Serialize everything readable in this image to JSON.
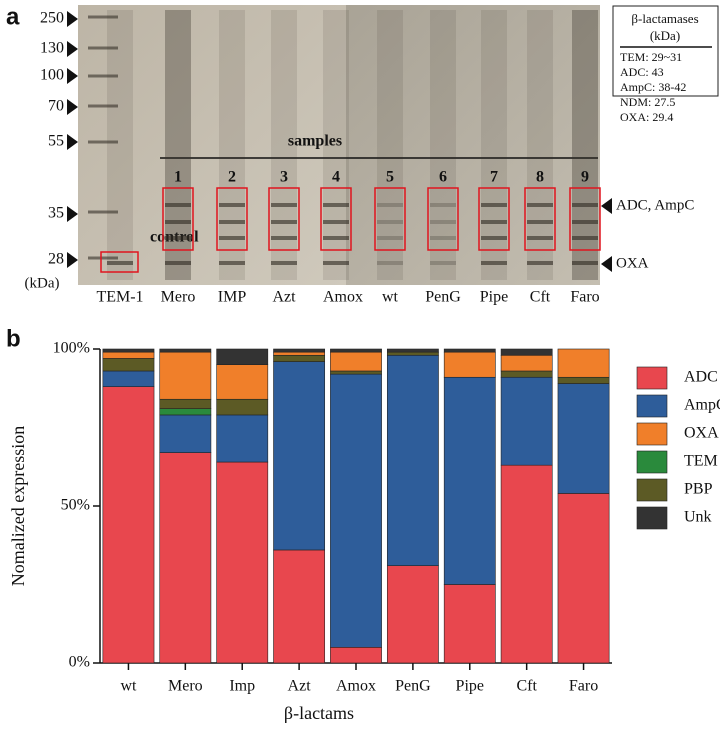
{
  "panel_labels": [
    "a",
    "b"
  ],
  "gel": {
    "markers": [
      "250",
      "130",
      "100",
      "70",
      "55",
      "35",
      "28"
    ],
    "marker_unit": "(kDa)",
    "lanes": [
      "TEM-1",
      "Mero",
      "IMP",
      "Azt",
      "Amox",
      "wt",
      "PenG",
      "Pipe",
      "Cft",
      "Faro"
    ],
    "samples_label": "samples",
    "sample_numbers": [
      "1",
      "2",
      "3",
      "4",
      "5",
      "6",
      "7",
      "8",
      "9"
    ],
    "control_label": "control",
    "band_labels": [
      "ADC, AmpC",
      "OXA"
    ],
    "legend_title": [
      "β-lactamases",
      "(kDa)"
    ],
    "legend_entries": [
      "TEM: 29~31",
      "ADC: 43",
      "AmpC: 38-42",
      "NDM: 27.5",
      "OXA: 29.4"
    ]
  },
  "chart_data": {
    "type": "stacked-bar",
    "y_label": "Nomalized expression",
    "x_label": "β-lactams",
    "categories": [
      "wt",
      "Mero",
      "Imp",
      "Azt",
      "Amox",
      "PenG",
      "Pipe",
      "Cft",
      "Faro"
    ],
    "series": [
      {
        "name": "ADC",
        "color": "#e8474e",
        "values": [
          88,
          67,
          64,
          36,
          5,
          31,
          25,
          63,
          54
        ]
      },
      {
        "name": "AmpC",
        "color": "#2e5d9a",
        "values": [
          5,
          12,
          15,
          60,
          87,
          67,
          66,
          28,
          35
        ]
      },
      {
        "name": "OXA",
        "color": "#f07f2a",
        "values": [
          2,
          15,
          11,
          1,
          6,
          0,
          8,
          5,
          9
        ]
      },
      {
        "name": "TEM",
        "color": "#2a8a3c",
        "values": [
          0,
          2,
          0,
          0,
          0,
          0,
          0,
          0,
          0
        ]
      },
      {
        "name": "PBP",
        "color": "#5c5a25",
        "values": [
          4,
          3,
          5,
          2,
          1,
          1,
          0,
          2,
          2
        ]
      },
      {
        "name": "Unk",
        "color": "#333333",
        "values": [
          1,
          1,
          5,
          1,
          1,
          1,
          1,
          2,
          0
        ]
      }
    ],
    "ylim": [
      0,
      100
    ],
    "yticks": [
      {
        "value": 0,
        "label": "0%"
      },
      {
        "value": 50,
        "label": "50%"
      },
      {
        "value": 100,
        "label": "100%"
      }
    ],
    "legend": "right"
  }
}
